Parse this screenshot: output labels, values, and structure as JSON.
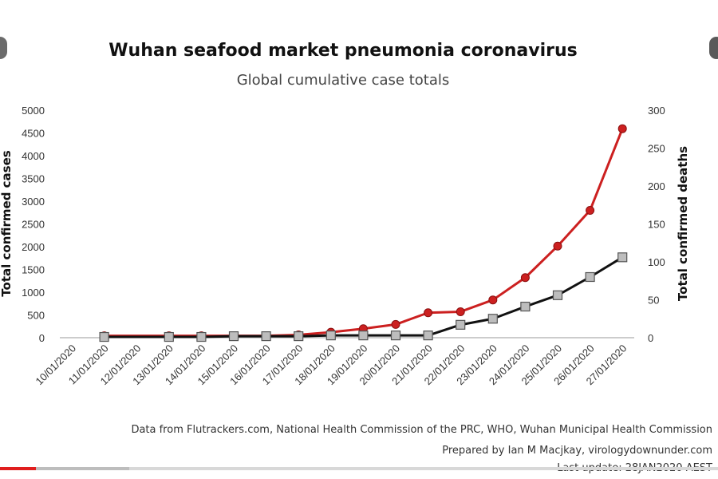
{
  "chart_data": {
    "type": "line",
    "title": "Wuhan seafood market pneumonia coronavirus",
    "subtitle": "Global cumulative case totals",
    "ylabel": "Total confirmed cases",
    "y2label": "Total confirmed deaths",
    "categories": [
      "10/01/2020",
      "11/01/2020",
      "12/01/2020",
      "13/01/2020",
      "14/01/2020",
      "15/01/2020",
      "16/01/2020",
      "17/01/2020",
      "18/01/2020",
      "19/01/2020",
      "20/01/2020",
      "21/01/2020",
      "22/01/2020",
      "23/01/2020",
      "24/01/2020",
      "25/01/2020",
      "26/01/2020",
      "27/01/2020"
    ],
    "ylim": [
      0,
      5000
    ],
    "y2lim": [
      0,
      300
    ],
    "yticks": [
      0,
      500,
      1000,
      1500,
      2000,
      2500,
      3000,
      3500,
      4000,
      4500,
      5000
    ],
    "y2ticks": [
      0,
      50,
      100,
      150,
      200,
      250,
      300
    ],
    "grid": false,
    "series": [
      {
        "axis": "left",
        "color": "#cc2020",
        "marker": "circle",
        "values": [
          null,
          41,
          null,
          41,
          41,
          41,
          41,
          62,
          121,
          198,
          291,
          548,
          571,
          830,
          1320,
          2014,
          2798,
          4593
        ]
      },
      {
        "axis": "right",
        "color": "#111111",
        "marker": "square",
        "values": [
          null,
          1,
          null,
          1,
          1,
          2,
          2,
          2,
          3,
          3,
          3,
          3,
          17,
          25,
          41,
          56,
          80,
          106
        ]
      }
    ]
  },
  "footer": {
    "line1": "Data from Flutrackers.com, National Health Commission of the PRC, WHO, Wuhan Municipal Health Commission",
    "line2": "Prepared by Ian M Macjkay, virologydownunder.com",
    "line3": "Last update: 28JAN2020 AEST"
  },
  "video_progress": {
    "played": 0.05,
    "loaded": 0.18
  }
}
